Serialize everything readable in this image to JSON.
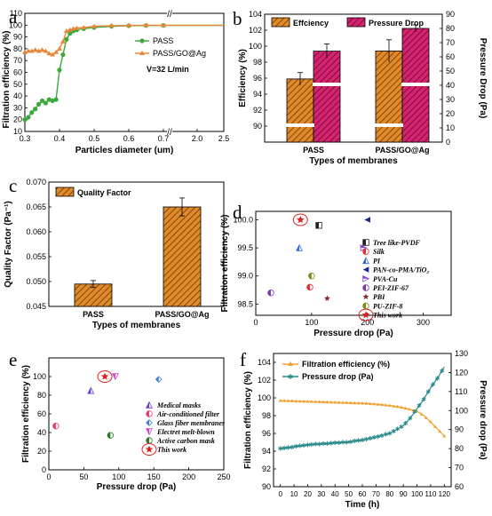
{
  "chart_data": [
    {
      "panel": "a",
      "type": "line",
      "xlabel": "Particles diameter (um)",
      "ylabel": "Filtration efficiency (%)",
      "xlim": [
        0.3,
        2.5
      ],
      "ylim": [
        10,
        110
      ],
      "x_broken_axis": true,
      "x_ticks": [
        "0.3",
        "0.4",
        "0.5",
        "0.6",
        "0.7",
        "2.0",
        "2.5"
      ],
      "y_ticks": [
        "10",
        "20",
        "30",
        "40",
        "50",
        "60",
        "70",
        "80",
        "90",
        "100",
        "110"
      ],
      "annotation": "V=32 L/min",
      "colors": {
        "PASS": "#3aa83a",
        "PASS/GO@Ag": "#e8863a"
      },
      "series": [
        {
          "name": "PASS",
          "points": [
            [
              0.3,
              20
            ],
            [
              0.31,
              22
            ],
            [
              0.32,
              26
            ],
            [
              0.33,
              29
            ],
            [
              0.34,
              33
            ],
            [
              0.35,
              36
            ],
            [
              0.36,
              34
            ],
            [
              0.37,
              37
            ],
            [
              0.38,
              36
            ],
            [
              0.39,
              37
            ],
            [
              0.4,
              62
            ],
            [
              0.41,
              75
            ],
            [
              0.42,
              88
            ],
            [
              0.43,
              93
            ],
            [
              0.44,
              95
            ],
            [
              0.45,
              96
            ],
            [
              0.47,
              97
            ],
            [
              0.5,
              98
            ],
            [
              0.55,
              99
            ],
            [
              0.6,
              99.5
            ],
            [
              0.65,
              99.7
            ],
            [
              0.7,
              99.8
            ],
            [
              2.0,
              99.8
            ],
            [
              2.5,
              99.8
            ]
          ]
        },
        {
          "name": "PASS/GO@Ag",
          "points": [
            [
              0.3,
              77
            ],
            [
              0.31,
              78
            ],
            [
              0.32,
              78
            ],
            [
              0.33,
              79
            ],
            [
              0.34,
              78
            ],
            [
              0.35,
              79
            ],
            [
              0.36,
              78
            ],
            [
              0.37,
              76
            ],
            [
              0.38,
              75
            ],
            [
              0.39,
              77
            ],
            [
              0.4,
              80
            ],
            [
              0.41,
              86
            ],
            [
              0.42,
              95
            ],
            [
              0.43,
              96
            ],
            [
              0.44,
              97
            ],
            [
              0.45,
              97.5
            ],
            [
              0.47,
              98
            ],
            [
              0.5,
              99
            ],
            [
              0.55,
              99.5
            ],
            [
              0.6,
              99.8
            ],
            [
              0.65,
              99.9
            ],
            [
              0.7,
              99.9
            ],
            [
              2.0,
              99.9
            ],
            [
              2.5,
              99.9
            ]
          ]
        }
      ]
    },
    {
      "panel": "b",
      "type": "bar",
      "categories": [
        "PASS",
        "PASS/GO@Ag"
      ],
      "xlabel": "Types of membranes",
      "ylabel": "Efficiency (%)",
      "ylabel_right": "Pressure Drop (Pa)",
      "ylim_left": [
        88,
        104
      ],
      "ylim_right": [
        0,
        90
      ],
      "y_ticks_left": [
        "90",
        "92",
        "94",
        "96",
        "98",
        "100",
        "102",
        "104"
      ],
      "y_ticks_right": [
        "0",
        "10",
        "20",
        "30",
        "40",
        "50",
        "60",
        "70",
        "80",
        "90"
      ],
      "series": [
        {
          "name": "Effciency",
          "axis": "left",
          "values": [
            95.9,
            99.4
          ],
          "errors": [
            0.8,
            1.4
          ],
          "color": "#e08a2a"
        },
        {
          "name": "Pressure Drop",
          "axis": "right",
          "values": [
            64,
            80
          ],
          "errors": [
            5,
            2.5
          ],
          "color": "#d4246e"
        }
      ]
    },
    {
      "panel": "c",
      "type": "bar",
      "categories": [
        "PASS",
        "PASS/GO@Ag"
      ],
      "xlabel": "Types of membranes",
      "ylabel": "Quality Factor (Pa⁻¹)",
      "ylim": [
        0.045,
        0.07
      ],
      "y_ticks": [
        "0.045",
        "0.050",
        "0.055",
        "0.060",
        "0.065",
        "0.070"
      ],
      "series": [
        {
          "name": "Quality Factor",
          "values": [
            0.0495,
            0.065
          ],
          "errors": [
            0.0007,
            0.0018
          ],
          "color": "#e08a2a"
        }
      ]
    },
    {
      "panel": "d",
      "type": "scatter",
      "xlabel": "Pressure drop (Pa)",
      "ylabel": "Filtration efficiency (%)",
      "xlim": [
        0,
        350
      ],
      "ylim": [
        98.3,
        100.15
      ],
      "x_ticks": [
        "0",
        "100",
        "200",
        "300"
      ],
      "y_ticks": [
        "98.5",
        "99.0",
        "99.5",
        "100.0"
      ],
      "points": [
        {
          "name": "Tree like-PVDF",
          "x": 113,
          "y": 99.9,
          "color": "#222222",
          "marker": "half-square"
        },
        {
          "name": "Silk",
          "x": 97,
          "y": 98.8,
          "color": "#e03030",
          "marker": "half-circle"
        },
        {
          "name": "PI",
          "x": 78,
          "y": 99.5,
          "color": "#2a6ad8",
          "marker": "half-triangle"
        },
        {
          "name": "PAN-co-PMA/TiO₂",
          "x": 200,
          "y": 100.0,
          "color": "#1a2a8a",
          "marker": "triangle-left"
        },
        {
          "name": "PVA-Cu",
          "x": 193,
          "y": 99.5,
          "color": "#8a40e0",
          "marker": "triangle-right"
        },
        {
          "name": "PEI-ZIF-67",
          "x": 27,
          "y": 98.7,
          "color": "#7a3aa8",
          "marker": "half-circle"
        },
        {
          "name": "PBI",
          "x": 128,
          "y": 98.6,
          "color": "#8a2a2a",
          "marker": "star"
        },
        {
          "name": "PU-ZIF-8",
          "x": 100,
          "y": 99.0,
          "color": "#7a8a1a",
          "marker": "half-circle"
        },
        {
          "name": "This work",
          "x": 80,
          "y": 100.0,
          "color": "#e02020",
          "marker": "star-circle"
        }
      ]
    },
    {
      "panel": "e",
      "type": "scatter",
      "xlabel": "Pressure drop (Pa)",
      "ylabel": "Filtration efficiency (%)",
      "xlim": [
        0,
        250
      ],
      "ylim": [
        0,
        120
      ],
      "x_ticks": [
        "0",
        "50",
        "100",
        "150",
        "200",
        "250"
      ],
      "y_ticks": [
        "0",
        "20",
        "40",
        "60",
        "80",
        "100"
      ],
      "points": [
        {
          "name": "Medical masks",
          "x": 60,
          "y": 85,
          "color": "#6a3ad8",
          "marker": "half-triangle"
        },
        {
          "name": "Air-conditioned filter",
          "x": 10,
          "y": 47,
          "color": "#e04070",
          "marker": "half-circle"
        },
        {
          "name": "Glass fiber membranes",
          "x": 157,
          "y": 97,
          "color": "#3a7ad8",
          "marker": "half-diamond"
        },
        {
          "name": "Electret melt-blown",
          "x": 95,
          "y": 100,
          "color": "#d040d0",
          "marker": "triangle-down"
        },
        {
          "name": "Active carbon mask",
          "x": 88,
          "y": 37,
          "color": "#2a7a2a",
          "marker": "half-circle"
        },
        {
          "name": "This work",
          "x": 80,
          "y": 100,
          "color": "#e02020",
          "marker": "star-circle"
        }
      ]
    },
    {
      "panel": "f",
      "type": "line",
      "xlabel": "Time (h)",
      "ylabel": "Filtration efficiency (%)",
      "ylabel_right": "Pressure drop (Pa)",
      "xlim": [
        -5,
        125
      ],
      "ylim_left": [
        90,
        105
      ],
      "ylim_right": [
        60,
        130
      ],
      "x_ticks": [
        "0",
        "10",
        "20",
        "30",
        "40",
        "50",
        "60",
        "70",
        "80",
        "90",
        "100",
        "110",
        "120"
      ],
      "y_ticks_left": [
        "90",
        "92",
        "94",
        "96",
        "98",
        "100",
        "102",
        "104"
      ],
      "y_ticks_right": [
        "60",
        "70",
        "80",
        "90",
        "100",
        "110",
        "120",
        "130"
      ],
      "series": [
        {
          "name": "Filtration efficiency (%)",
          "axis": "left",
          "color": "#f0a030",
          "points": [
            [
              0,
              99.7
            ],
            [
              10,
              99.65
            ],
            [
              20,
              99.6
            ],
            [
              30,
              99.55
            ],
            [
              40,
              99.5
            ],
            [
              50,
              99.45
            ],
            [
              60,
              99.4
            ],
            [
              70,
              99.3
            ],
            [
              80,
              99.15
            ],
            [
              90,
              98.9
            ],
            [
              100,
              98.5
            ],
            [
              105,
              98.0
            ],
            [
              110,
              97.3
            ],
            [
              115,
              96.5
            ],
            [
              120,
              95.7
            ]
          ]
        },
        {
          "name": "Pressure drop (Pa)",
          "axis": "right",
          "color": "#2a8a8a",
          "points": [
            [
              0,
              80
            ],
            [
              10,
              81
            ],
            [
              20,
              82
            ],
            [
              30,
              82.5
            ],
            [
              40,
              83
            ],
            [
              50,
              83.5
            ],
            [
              60,
              84.5
            ],
            [
              70,
              86
            ],
            [
              80,
              88
            ],
            [
              90,
              92
            ],
            [
              95,
              96
            ],
            [
              100,
              101
            ],
            [
              105,
              106
            ],
            [
              110,
              112
            ],
            [
              115,
              117
            ],
            [
              120,
              123
            ]
          ]
        }
      ]
    }
  ]
}
